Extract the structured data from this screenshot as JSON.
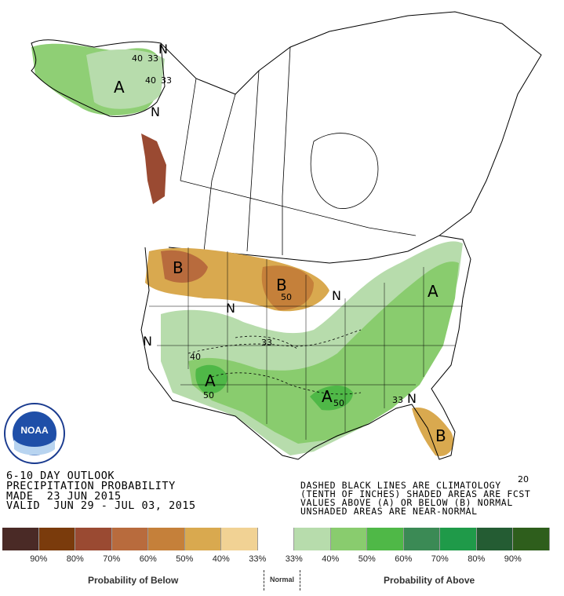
{
  "outlook": {
    "line1": "6-10 DAY OUTLOOK",
    "line2": "PRECIPITATION PROBABILITY",
    "line3": "MADE  23 JUN 2015",
    "line4": "VALID  JUN 29 - JUL 03, 2015"
  },
  "notes": {
    "line1": "DASHED BLACK LINES ARE CLIMATOLOGY",
    "line2": "(TENTH OF INCHES) SHADED AREAS ARE FCST",
    "line3": "VALUES ABOVE (A) OR BELOW (B) NORMAL",
    "line4": "UNSHADED AREAS ARE NEAR-NORMAL"
  },
  "legend": {
    "swatches": [
      "#4a2a26",
      "#7a3b0c",
      "#9a4a32",
      "#b86b3d",
      "#c5803a",
      "#d9a94f",
      "#f1d294",
      "#ffffff",
      "#b7dcac",
      "#89cc6e",
      "#4fb847",
      "#3b8a55",
      "#1f9a49",
      "#245c33",
      "#2e5e1c"
    ],
    "labels": [
      "90%",
      "80%",
      "70%",
      "60%",
      "50%",
      "40%",
      "33%",
      "33%",
      "40%",
      "50%",
      "60%",
      "70%",
      "80%",
      "90%"
    ],
    "below_caption": "Probability of Below",
    "normal_caption": "Normal",
    "above_caption": "Probability of Above"
  },
  "map_labels": {
    "alaska_A": "A",
    "alaska_40": "40",
    "alaska_33a": "33",
    "alaska_33b": "33",
    "alaska_40b": "40",
    "alaska_N1": "N",
    "alaska_N2": "N",
    "nw_B": "B",
    "plains_B": "B",
    "plains_50": "50",
    "ne_N": "N",
    "mid_N": "N",
    "west_N": "N",
    "sw_A": "A",
    "sw_40": "40",
    "sw_50": "50",
    "center_33": "33",
    "south_A": "A",
    "south_50": "50",
    "east_A": "A",
    "se_33": "33",
    "se_N": "N",
    "fl_B": "B",
    "fl_20": "20"
  },
  "logo": {
    "text": "NOAA"
  }
}
